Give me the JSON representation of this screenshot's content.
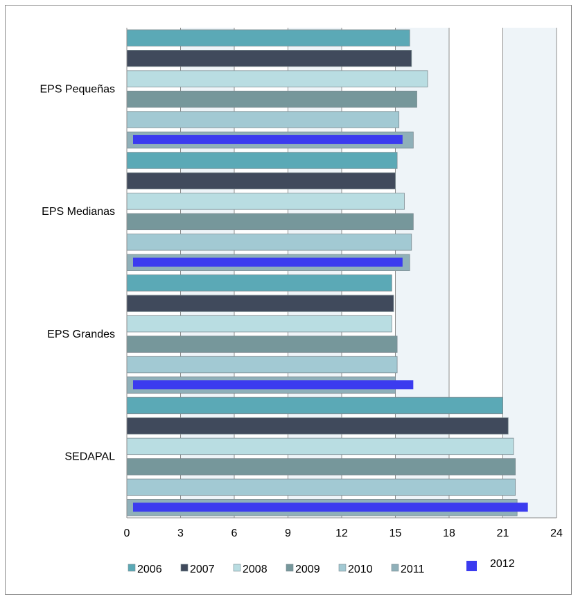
{
  "chart_data": {
    "type": "bar",
    "orientation": "horizontal",
    "title": "",
    "xlabel": "",
    "ylabel": "",
    "xlim": [
      0,
      24
    ],
    "xticks": [
      0,
      3,
      6,
      9,
      12,
      15,
      18,
      21,
      24
    ],
    "categories": [
      "EPS Pequeñas",
      "EPS Medianas",
      "EPS Grandes",
      "SEDAPAL"
    ],
    "series": [
      {
        "name": "2006",
        "color": "#5ba9b6",
        "values": [
          15.8,
          15.1,
          14.8,
          21.0
        ]
      },
      {
        "name": "2007",
        "color": "#404a5c",
        "values": [
          15.9,
          15.0,
          14.9,
          21.3
        ]
      },
      {
        "name": "2008",
        "color": "#b9dde2",
        "values": [
          16.8,
          15.5,
          14.8,
          21.6
        ]
      },
      {
        "name": "2009",
        "color": "#76979b",
        "values": [
          16.2,
          16.0,
          15.1,
          21.7
        ]
      },
      {
        "name": "2010",
        "color": "#a2c9d3",
        "values": [
          15.2,
          15.9,
          15.1,
          21.7
        ]
      },
      {
        "name": "2011",
        "color": "#8fb0b9",
        "values": [
          16.0,
          15.8,
          15.0,
          21.8
        ]
      },
      {
        "name": "2012",
        "color": "#3b3bef",
        "values": [
          15.4,
          15.4,
          16.0,
          22.4
        ]
      }
    ],
    "grid": true,
    "legend_position": "bottom"
  }
}
